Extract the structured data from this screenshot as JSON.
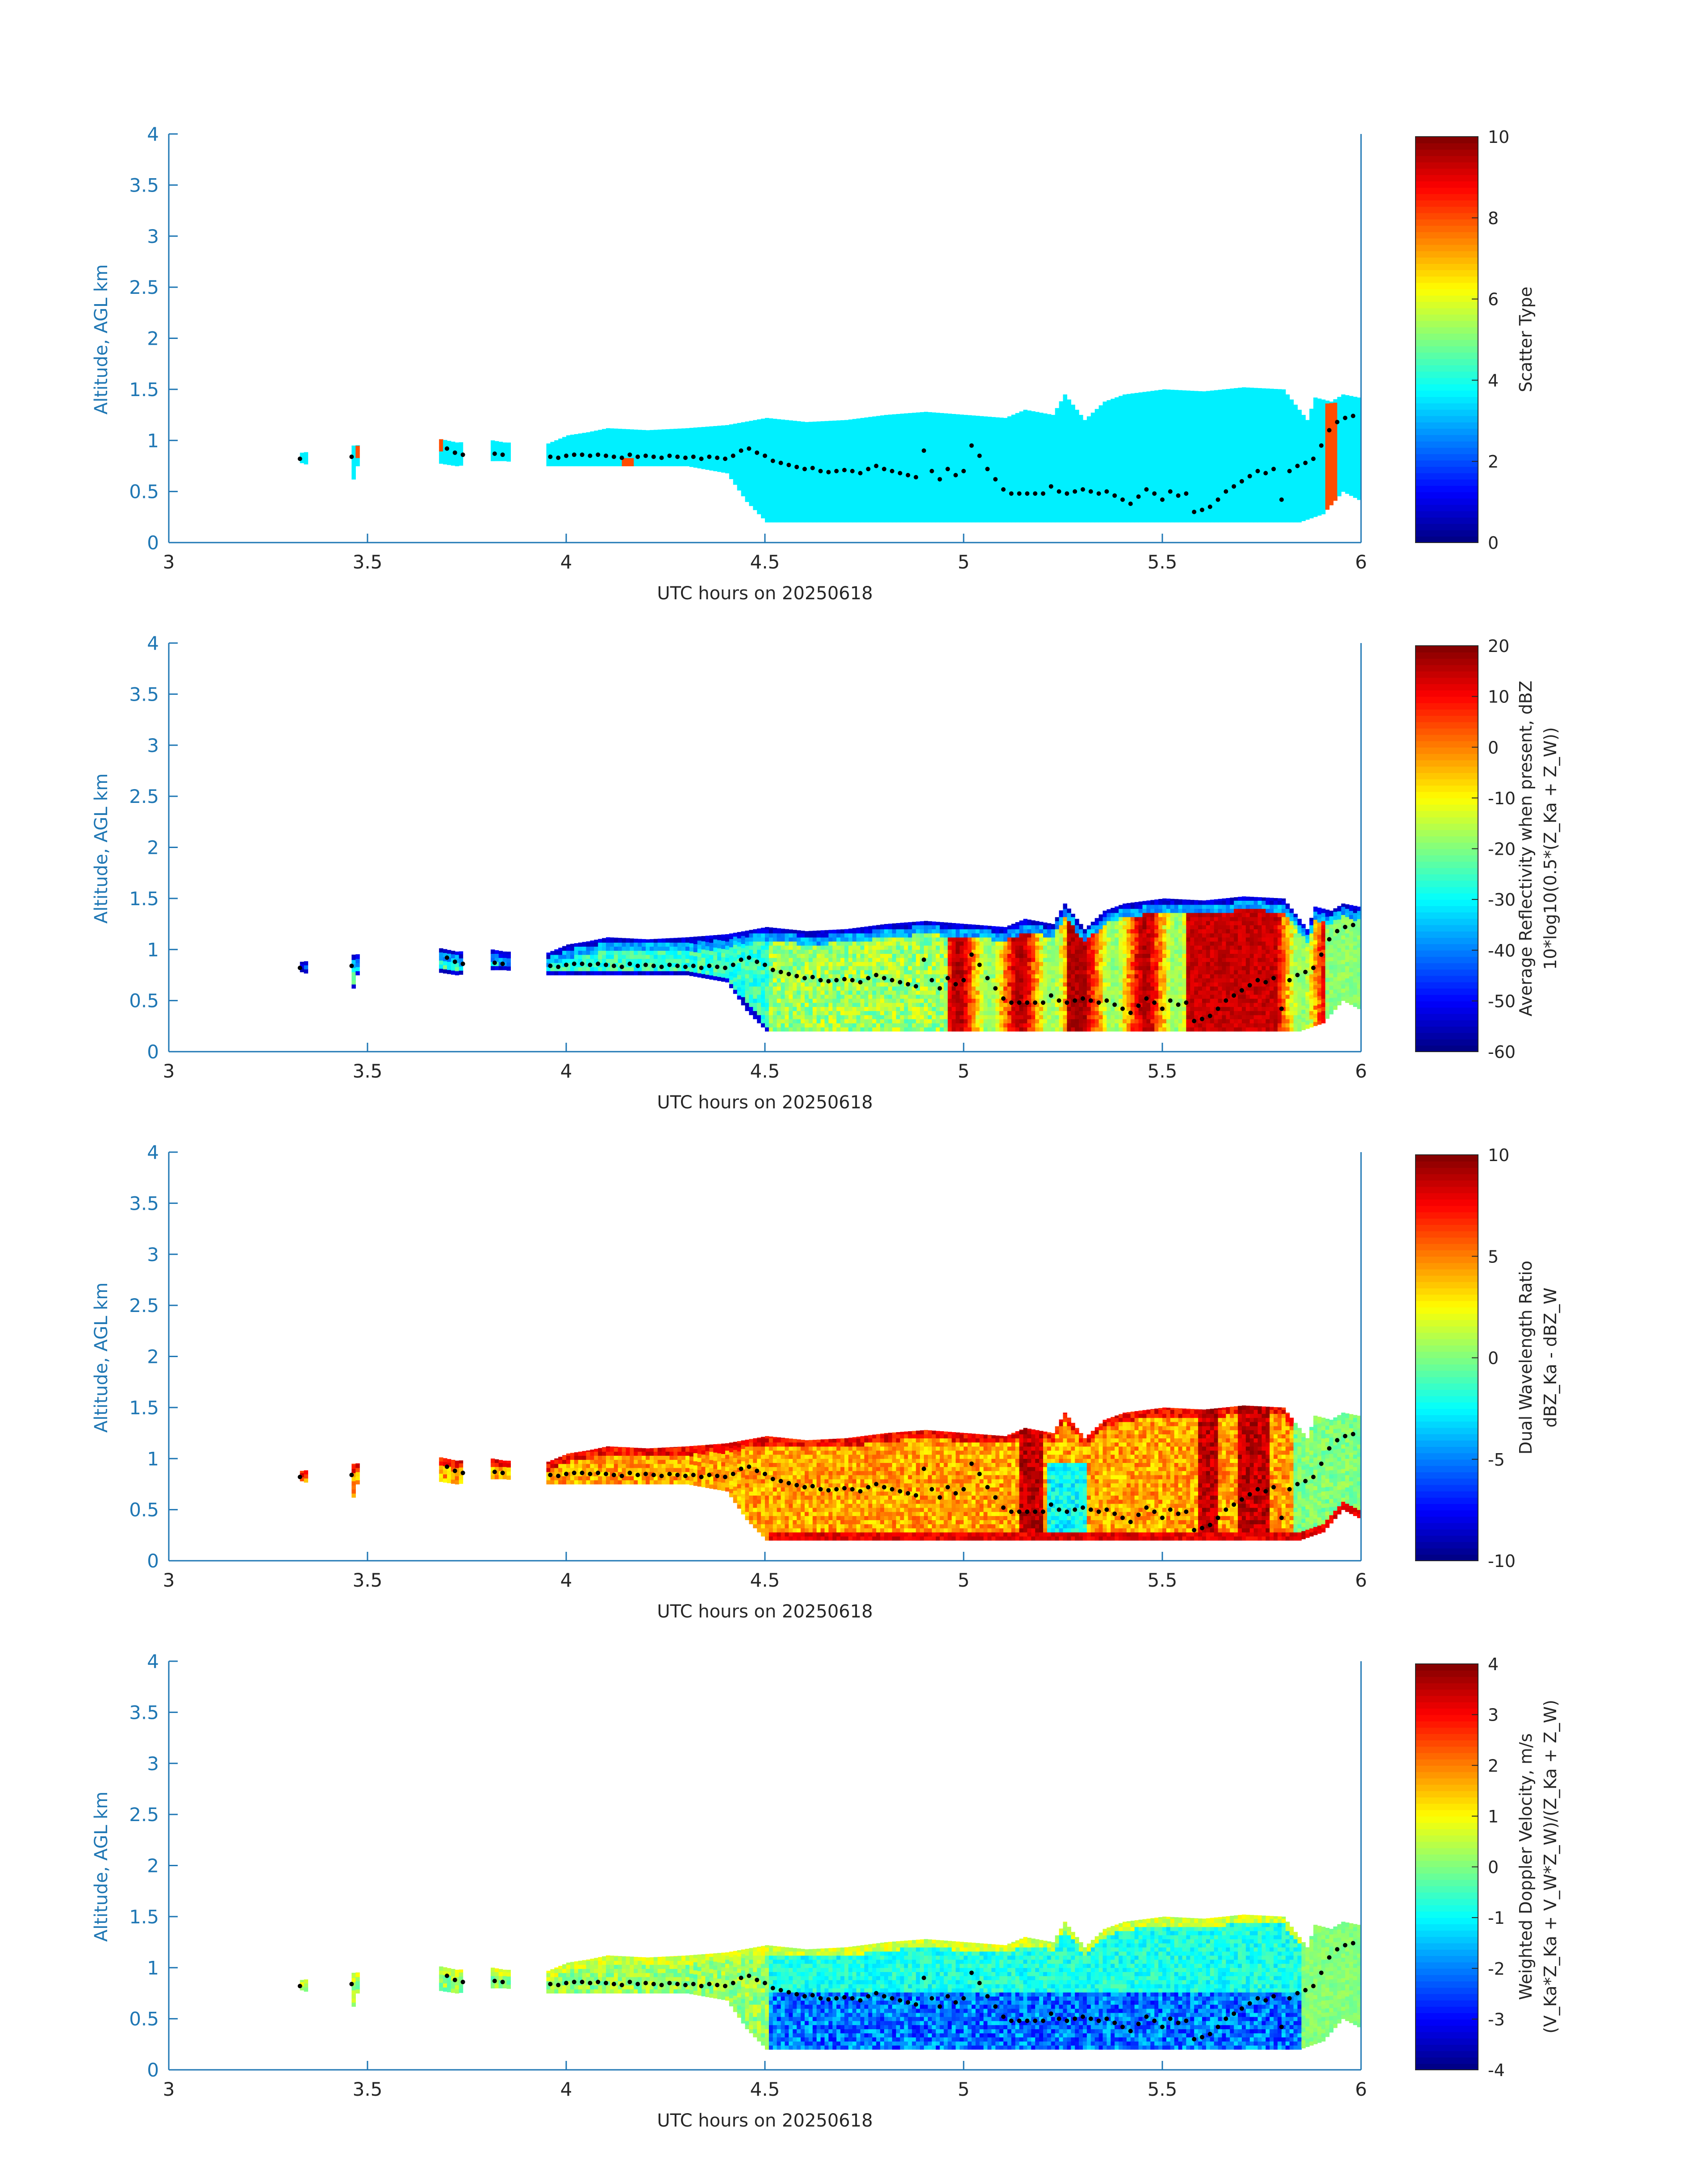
{
  "figure": {
    "background": "#ffffff",
    "axis_color": "#1f77b4",
    "text_color": "#262626"
  },
  "chart_data": [
    {
      "type": "heatmap",
      "xlabel": "UTC hours on 20250618",
      "ylabel": "Altitude, AGL km",
      "xlim": [
        3,
        6
      ],
      "ylim": [
        0,
        4
      ],
      "xticks": [
        "3",
        "3.5",
        "4",
        "4.5",
        "5",
        "5.5",
        "6"
      ],
      "yticks": [
        "0",
        "0.5",
        "1",
        "1.5",
        "2",
        "2.5",
        "3",
        "3.5",
        "4"
      ],
      "colorbar": {
        "label_lines": [
          "Scatter Type"
        ],
        "range": [
          0,
          10
        ],
        "ticks": [
          "0",
          "2",
          "4",
          "6",
          "8",
          "10"
        ]
      },
      "field": "scatter_type",
      "dominant_value": 3.6,
      "notes": "Mostly single scatter type ~3.6 (cyan); a few cells ~8 (red-orange) near 5.9 h and near 3.47, 3.68, 4.14 h"
    },
    {
      "type": "heatmap",
      "xlabel": "UTC hours on 20250618",
      "ylabel": "Altitude, AGL km",
      "xlim": [
        3,
        6
      ],
      "ylim": [
        0,
        4
      ],
      "xticks": [
        "3",
        "3.5",
        "4",
        "4.5",
        "5",
        "5.5",
        "6"
      ],
      "yticks": [
        "0",
        "0.5",
        "1",
        "1.5",
        "2",
        "2.5",
        "3",
        "3.5",
        "4"
      ],
      "colorbar": {
        "label_lines": [
          "Average Reflectivity when present, dBZ",
          "10*log10(0.5*(Z_Ka + Z_W))"
        ],
        "range": [
          -60,
          20
        ],
        "ticks": [
          "-60",
          "-50",
          "-40",
          "-30",
          "-20",
          "-10",
          "0",
          "10",
          "20"
        ]
      },
      "field": "avg_reflectivity_dBZ",
      "notes": "Edges near -60 dBZ; interior -30 to -10 before 5 h; strong cores 0 to +15 dBZ between 5.0 and 5.9 h"
    },
    {
      "type": "heatmap",
      "xlabel": "UTC hours on 20250618",
      "ylabel": "Altitude, AGL km",
      "xlim": [
        3,
        6
      ],
      "ylim": [
        0,
        4
      ],
      "xticks": [
        "3",
        "3.5",
        "4",
        "4.5",
        "5",
        "5.5",
        "6"
      ],
      "yticks": [
        "0",
        "0.5",
        "1",
        "1.5",
        "2",
        "2.5",
        "3",
        "3.5",
        "4"
      ],
      "colorbar": {
        "label_lines": [
          "Dual Wavelength Ratio",
          "dBZ_Ka - dBZ_W"
        ],
        "range": [
          -10,
          10
        ],
        "ticks": [
          "-10",
          "-5",
          "0",
          "5",
          "10"
        ]
      },
      "field": "dual_wavelength_ratio_dB",
      "notes": "Mostly +3 to +6 dB; high +8 to +10 dB cores near 5.15 h and 5.6-5.75 h; negative -4 dB region near 5.2-5.3 h"
    },
    {
      "type": "heatmap",
      "xlabel": "UTC hours on 20250618",
      "ylabel": "Altitude, AGL km",
      "xlim": [
        3,
        6
      ],
      "ylim": [
        0,
        4
      ],
      "xticks": [
        "3",
        "3.5",
        "4",
        "4.5",
        "5",
        "5.5",
        "6"
      ],
      "yticks": [
        "0",
        "0.5",
        "1",
        "1.5",
        "2",
        "2.5",
        "3",
        "3.5",
        "4"
      ],
      "colorbar": {
        "label_lines": [
          "Weighted Doppler Velocity, m/s",
          "(V_Ka*Z_Ka + V_W*Z_W)/(Z_Ka + Z_W)"
        ],
        "range": [
          -4,
          4
        ],
        "ticks": [
          "-4",
          "-3",
          "-2",
          "-1",
          "0",
          "1",
          "2",
          "3",
          "4"
        ]
      },
      "field": "weighted_doppler_velocity_ms",
      "notes": "Mostly -0.5 to 0.5 m/s near cloud top; downward -1 to -3 m/s in lower layers after 4.5 h"
    }
  ],
  "cloud_mask": {
    "dx_hours": 0.01,
    "x_start": 3.33,
    "x_end": 5.99,
    "gaps": [
      [
        3.345,
        3.455
      ],
      [
        3.475,
        3.675
      ],
      [
        3.735,
        3.805
      ],
      [
        3.855,
        3.945
      ]
    ],
    "top_km": [
      [
        3.33,
        0.88
      ],
      [
        3.46,
        0.95
      ],
      [
        3.67,
        1.02
      ],
      [
        3.72,
        0.98
      ],
      [
        3.81,
        1.0
      ],
      [
        3.84,
        0.98
      ],
      [
        3.95,
        0.97
      ],
      [
        4.0,
        1.05
      ],
      [
        4.05,
        1.08
      ],
      [
        4.1,
        1.12
      ],
      [
        4.2,
        1.1
      ],
      [
        4.3,
        1.12
      ],
      [
        4.4,
        1.15
      ],
      [
        4.5,
        1.22
      ],
      [
        4.6,
        1.18
      ],
      [
        4.7,
        1.2
      ],
      [
        4.8,
        1.25
      ],
      [
        4.9,
        1.28
      ],
      [
        5.0,
        1.25
      ],
      [
        5.1,
        1.22
      ],
      [
        5.15,
        1.3
      ],
      [
        5.22,
        1.25
      ],
      [
        5.25,
        1.45
      ],
      [
        5.3,
        1.2
      ],
      [
        5.35,
        1.38
      ],
      [
        5.4,
        1.45
      ],
      [
        5.5,
        1.5
      ],
      [
        5.6,
        1.48
      ],
      [
        5.7,
        1.52
      ],
      [
        5.8,
        1.5
      ],
      [
        5.84,
        1.3
      ],
      [
        5.86,
        1.2
      ],
      [
        5.88,
        1.42
      ],
      [
        5.92,
        1.38
      ],
      [
        5.95,
        1.45
      ],
      [
        5.99,
        1.42
      ]
    ],
    "base_km": [
      [
        3.33,
        0.78
      ],
      [
        3.46,
        0.62
      ],
      [
        3.47,
        0.75
      ],
      [
        3.67,
        0.78
      ],
      [
        3.72,
        0.75
      ],
      [
        3.81,
        0.8
      ],
      [
        3.84,
        0.8
      ],
      [
        3.95,
        0.75
      ],
      [
        4.3,
        0.75
      ],
      [
        4.4,
        0.68
      ],
      [
        4.45,
        0.4
      ],
      [
        4.5,
        0.2
      ],
      [
        5.84,
        0.2
      ],
      [
        5.9,
        0.28
      ],
      [
        5.95,
        0.5
      ],
      [
        5.99,
        0.42
      ]
    ]
  },
  "cloud_base_dots": {
    "x": [
      3.33,
      3.46,
      3.7,
      3.72,
      3.74,
      3.82,
      3.84,
      3.96,
      3.98,
      4.0,
      4.02,
      4.04,
      4.06,
      4.08,
      4.1,
      4.12,
      4.14,
      4.16,
      4.18,
      4.2,
      4.22,
      4.24,
      4.26,
      4.28,
      4.3,
      4.32,
      4.34,
      4.36,
      4.38,
      4.4,
      4.42,
      4.44,
      4.46,
      4.48,
      4.5,
      4.52,
      4.54,
      4.56,
      4.58,
      4.6,
      4.62,
      4.64,
      4.66,
      4.68,
      4.7,
      4.72,
      4.74,
      4.76,
      4.78,
      4.8,
      4.82,
      4.84,
      4.86,
      4.88,
      4.9,
      4.92,
      4.94,
      4.96,
      4.98,
      5.0,
      5.02,
      5.04,
      5.06,
      5.08,
      5.1,
      5.12,
      5.14,
      5.16,
      5.18,
      5.2,
      5.22,
      5.24,
      5.26,
      5.28,
      5.3,
      5.32,
      5.34,
      5.36,
      5.38,
      5.4,
      5.42,
      5.44,
      5.46,
      5.48,
      5.5,
      5.52,
      5.54,
      5.56,
      5.58,
      5.6,
      5.62,
      5.64,
      5.66,
      5.68,
      5.7,
      5.72,
      5.74,
      5.76,
      5.78,
      5.8,
      5.82,
      5.84,
      5.86,
      5.88,
      5.9,
      5.92,
      5.94,
      5.96,
      5.98
    ],
    "y": [
      0.82,
      0.84,
      0.92,
      0.88,
      0.86,
      0.87,
      0.86,
      0.84,
      0.83,
      0.85,
      0.86,
      0.86,
      0.85,
      0.86,
      0.85,
      0.84,
      0.83,
      0.86,
      0.84,
      0.85,
      0.84,
      0.83,
      0.85,
      0.84,
      0.83,
      0.84,
      0.82,
      0.84,
      0.83,
      0.82,
      0.85,
      0.9,
      0.92,
      0.88,
      0.85,
      0.8,
      0.78,
      0.76,
      0.74,
      0.72,
      0.73,
      0.7,
      0.69,
      0.7,
      0.71,
      0.7,
      0.68,
      0.72,
      0.75,
      0.72,
      0.7,
      0.68,
      0.66,
      0.64,
      0.9,
      0.7,
      0.62,
      0.72,
      0.66,
      0.7,
      0.95,
      0.85,
      0.72,
      0.62,
      0.52,
      0.48,
      0.48,
      0.48,
      0.48,
      0.48,
      0.55,
      0.5,
      0.48,
      0.5,
      0.52,
      0.5,
      0.48,
      0.5,
      0.46,
      0.42,
      0.38,
      0.45,
      0.52,
      0.48,
      0.42,
      0.5,
      0.46,
      0.48,
      0.3,
      0.32,
      0.35,
      0.42,
      0.5,
      0.55,
      0.6,
      0.65,
      0.7,
      0.68,
      0.72,
      0.42,
      0.7,
      0.75,
      0.78,
      0.82,
      0.95,
      1.1,
      1.18,
      1.22,
      1.24
    ]
  }
}
